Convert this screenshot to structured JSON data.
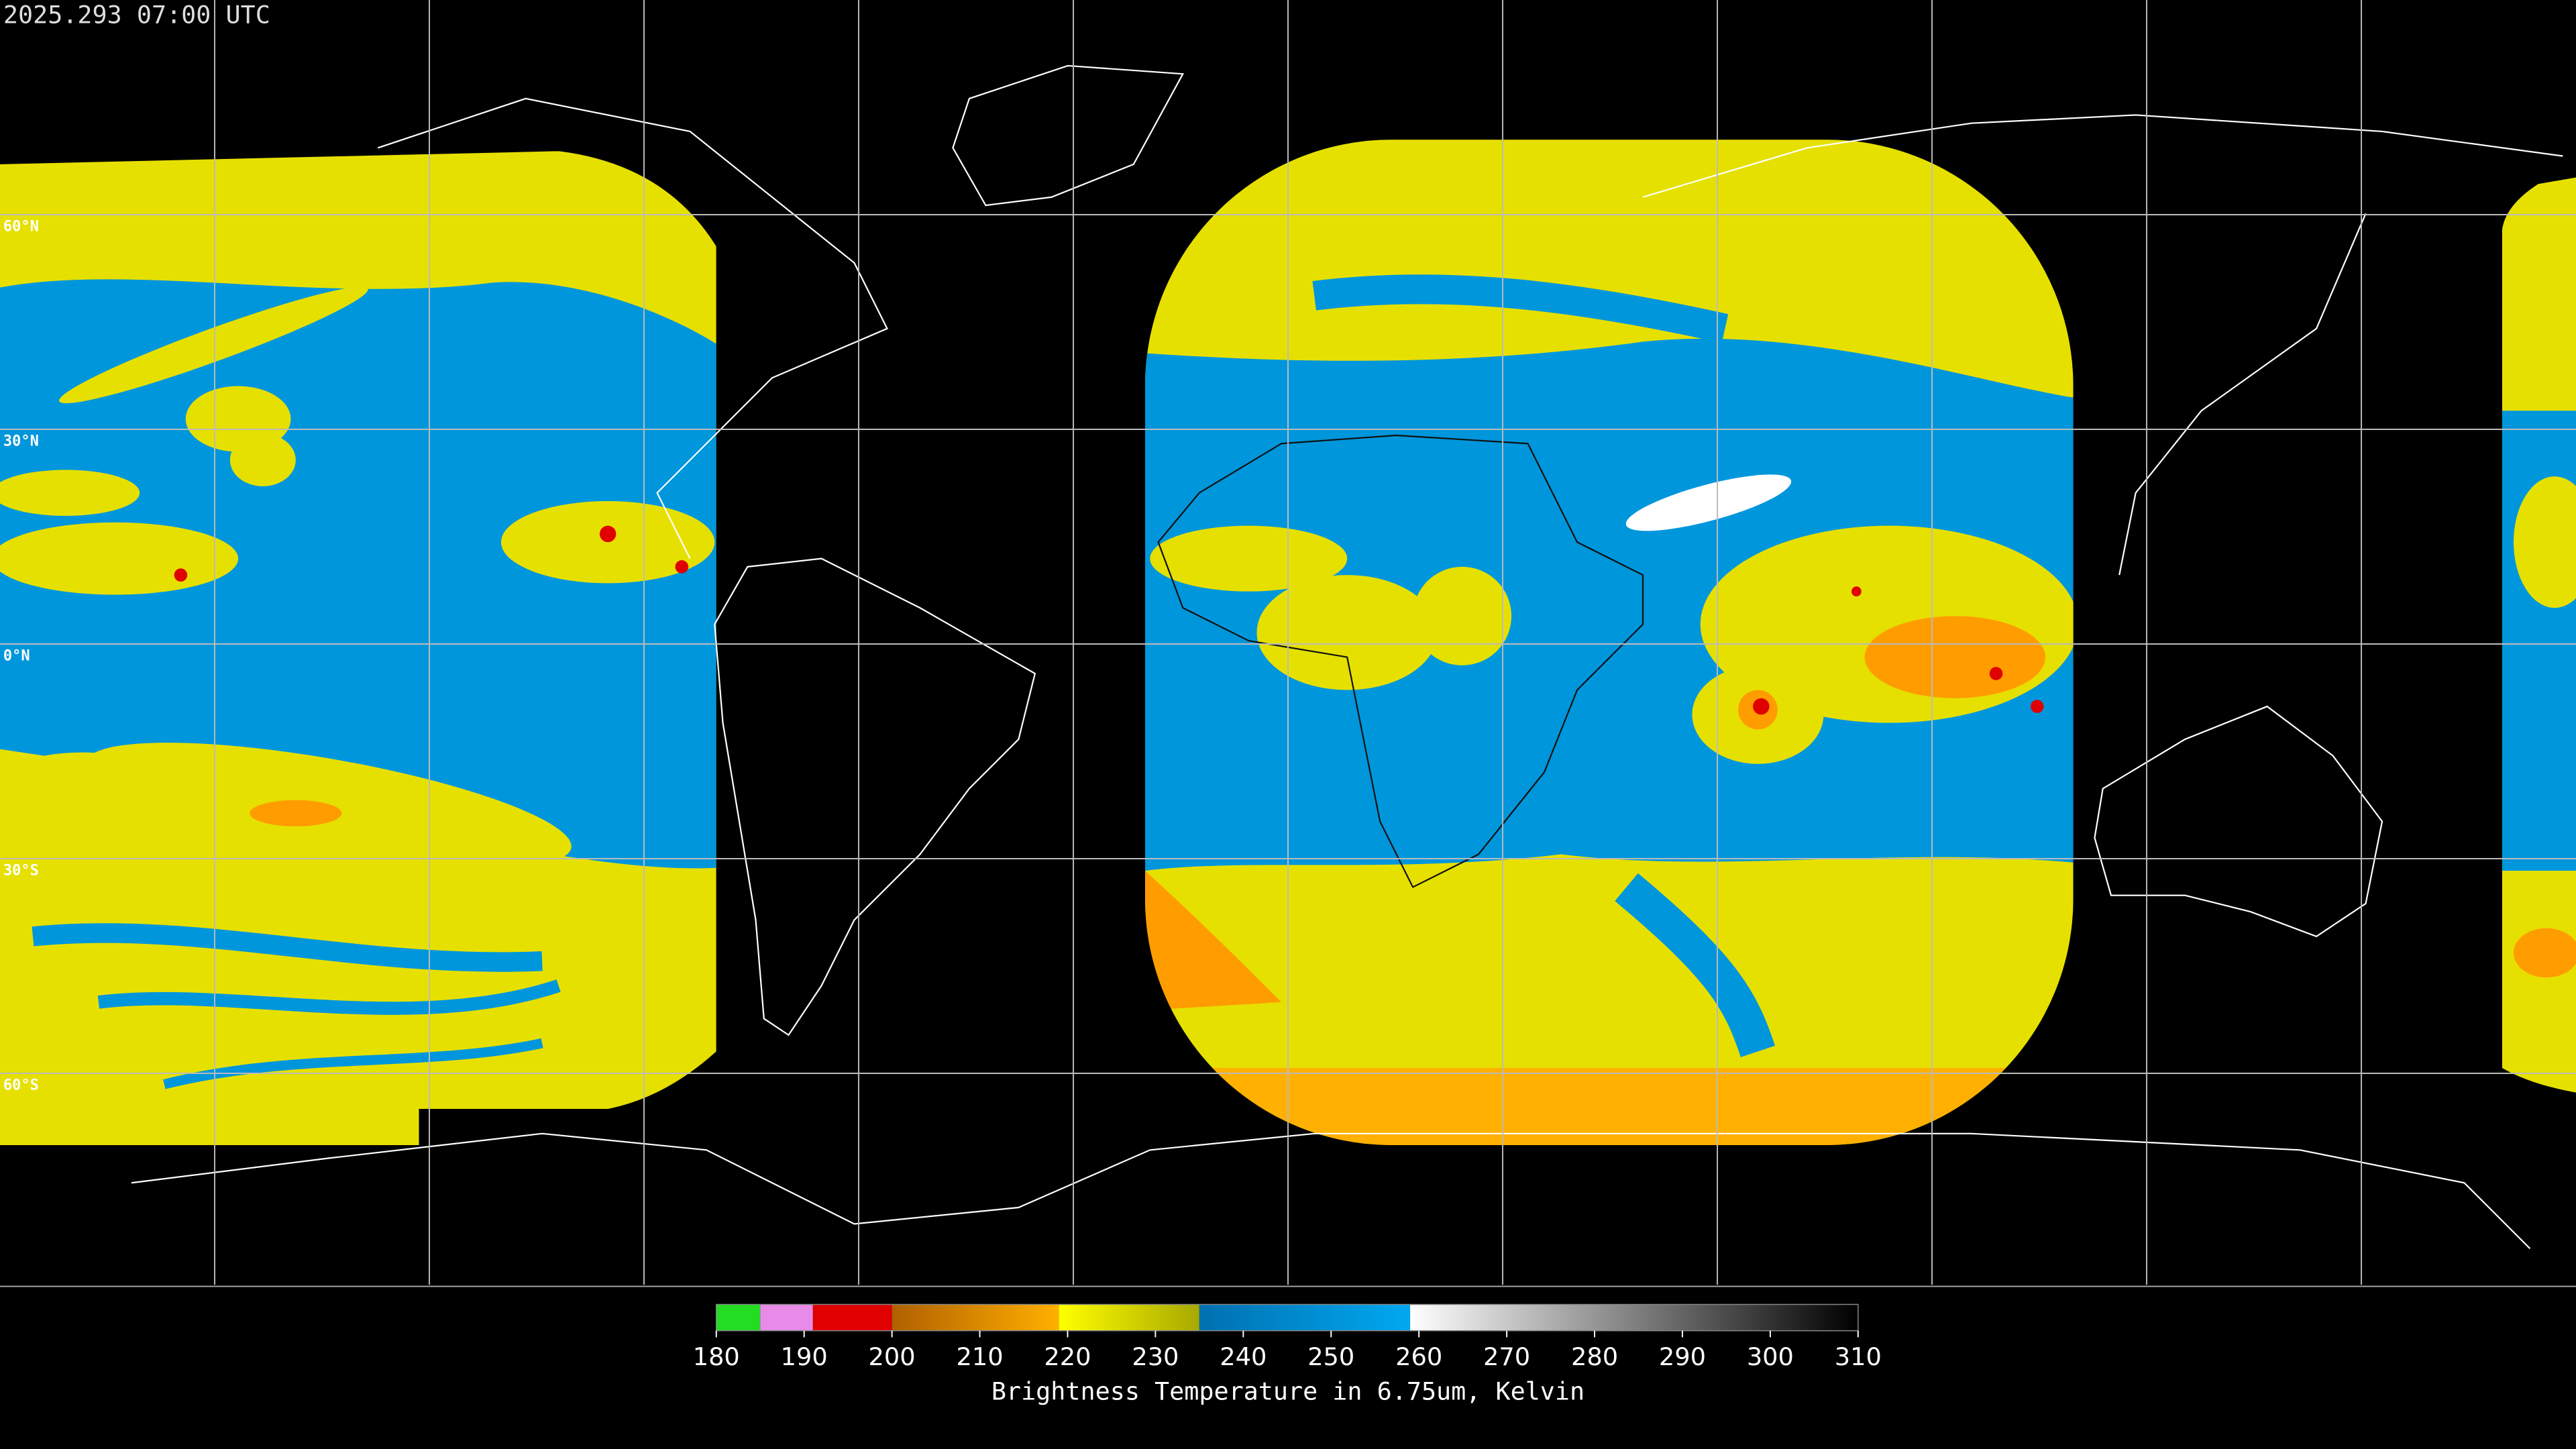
{
  "header": {
    "title": "2025.293 07:00 UTC"
  },
  "lat_labels": [
    {
      "value": 60,
      "label": "60°N"
    },
    {
      "value": 30,
      "label": "30°N"
    },
    {
      "value": 0,
      "label": "0°N"
    },
    {
      "value": -30,
      "label": "30°S"
    },
    {
      "value": -60,
      "label": "60°S"
    }
  ],
  "colorbar": {
    "label": "Brightness Temperature in 6.75um, Kelvin",
    "range": [
      180,
      310
    ],
    "ticks": [
      180,
      190,
      200,
      210,
      220,
      230,
      240,
      250,
      260,
      270,
      280,
      290,
      300,
      310
    ],
    "segments": [
      {
        "from": 180,
        "to": 185,
        "colors": [
          "#22dd22",
          "#22dd22"
        ]
      },
      {
        "from": 185,
        "to": 191,
        "colors": [
          "#e88ae8",
          "#e88ae8"
        ]
      },
      {
        "from": 191,
        "to": 200,
        "colors": [
          "#e00000",
          "#e00000"
        ]
      },
      {
        "from": 200,
        "to": 219,
        "colors": [
          "#b06000",
          "#ffb000"
        ]
      },
      {
        "from": 219,
        "to": 235,
        "colors": [
          "#ffff00",
          "#a8a800"
        ]
      },
      {
        "from": 235,
        "to": 259,
        "colors": [
          "#0070b0",
          "#00a8f0"
        ]
      },
      {
        "from": 259,
        "to": 310,
        "colors": [
          "#ffffff",
          "#000000"
        ]
      }
    ]
  }
}
